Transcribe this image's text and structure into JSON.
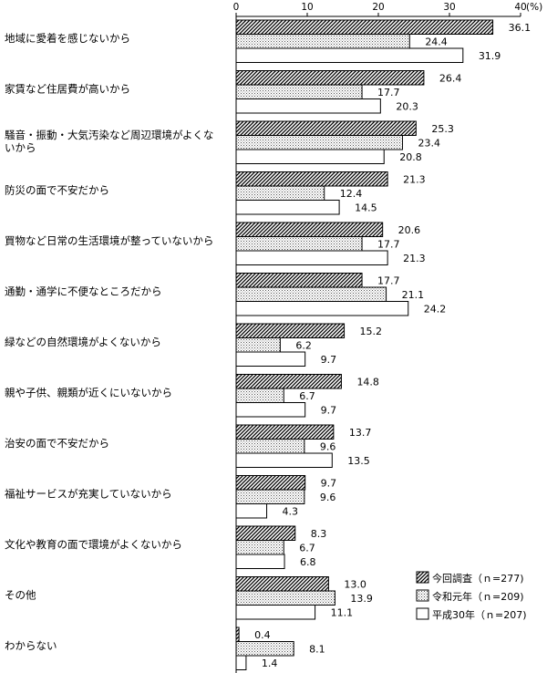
{
  "chart_data": {
    "type": "bar",
    "orientation": "horizontal",
    "title": "",
    "xlabel": "",
    "ylabel": "",
    "unit": "(%)",
    "xlim": [
      0,
      40
    ],
    "xticks": [
      0,
      10,
      20,
      30,
      40
    ],
    "grid": false,
    "legend_position": "bottom-right",
    "categories": [
      "地域に愛着を感じないから",
      "家賃など住居費が高いから",
      "騒音・振動・大気汚染など周辺環境がよくないから",
      "防災の面で不安だから",
      "買物など日常の生活環境が整っていないから",
      "通勤・通学に不便なところだから",
      "緑などの自然環境がよくないから",
      "親や子供、親類が近くにいないから",
      "治安の面で不安だから",
      "福祉サービスが充実していないから",
      "文化や教育の面で環境がよくないから",
      "その他",
      "わからない"
    ],
    "category_display": [
      [
        "地域に愛着を感じないから"
      ],
      [
        "家賃など住居費が高いから"
      ],
      [
        "騒音・振動・大気汚染など周辺環境がよくな",
        "いから"
      ],
      [
        "防災の面で不安だから"
      ],
      [
        "買物など日常の生活環境が整っていないから"
      ],
      [
        "通勤・通学に不便なところだから"
      ],
      [
        "緑などの自然環境がよくないから"
      ],
      [
        "親や子供、親類が近くにいないから"
      ],
      [
        "治安の面で不安だから"
      ],
      [
        "福祉サービスが充実していないから"
      ],
      [
        "文化や教育の面で環境がよくないから"
      ],
      [
        "その他"
      ],
      [
        "わからない"
      ]
    ],
    "series": [
      {
        "name": "今回調査（ｎ=277)",
        "pattern": "diagonal-hatch",
        "values": [
          36.1,
          26.4,
          25.3,
          21.3,
          20.6,
          17.7,
          15.2,
          14.8,
          13.7,
          9.7,
          8.3,
          13.0,
          0.4
        ],
        "labels": [
          "36.1",
          "26.4",
          "25.3",
          "21.3",
          "20.6",
          "17.7",
          "15.2",
          "14.8",
          "13.7",
          "9.7",
          "8.3",
          "13.0",
          "0.4"
        ]
      },
      {
        "name": "令和元年（ｎ=209)",
        "pattern": "dots",
        "values": [
          24.4,
          17.7,
          23.4,
          12.4,
          17.7,
          21.1,
          6.2,
          6.7,
          9.6,
          9.6,
          6.7,
          13.9,
          8.1
        ],
        "labels": [
          "24.4",
          "17.7",
          "23.4",
          "12.4",
          "17.7",
          "21.1",
          "6.2",
          "6.7",
          "9.6",
          "9.6",
          "6.7",
          "13.9",
          "8.1"
        ]
      },
      {
        "name": "平成30年（ｎ=207)",
        "pattern": "white",
        "values": [
          31.9,
          20.3,
          20.8,
          14.5,
          21.3,
          24.2,
          9.7,
          9.7,
          13.5,
          4.3,
          6.8,
          11.1,
          1.4
        ],
        "labels": [
          "31.9",
          "20.3",
          "20.8",
          "14.5",
          "21.3",
          "24.2",
          "9.7",
          "9.7",
          "13.5",
          "4.3",
          "6.8",
          "11.1",
          "1.4"
        ]
      }
    ]
  }
}
